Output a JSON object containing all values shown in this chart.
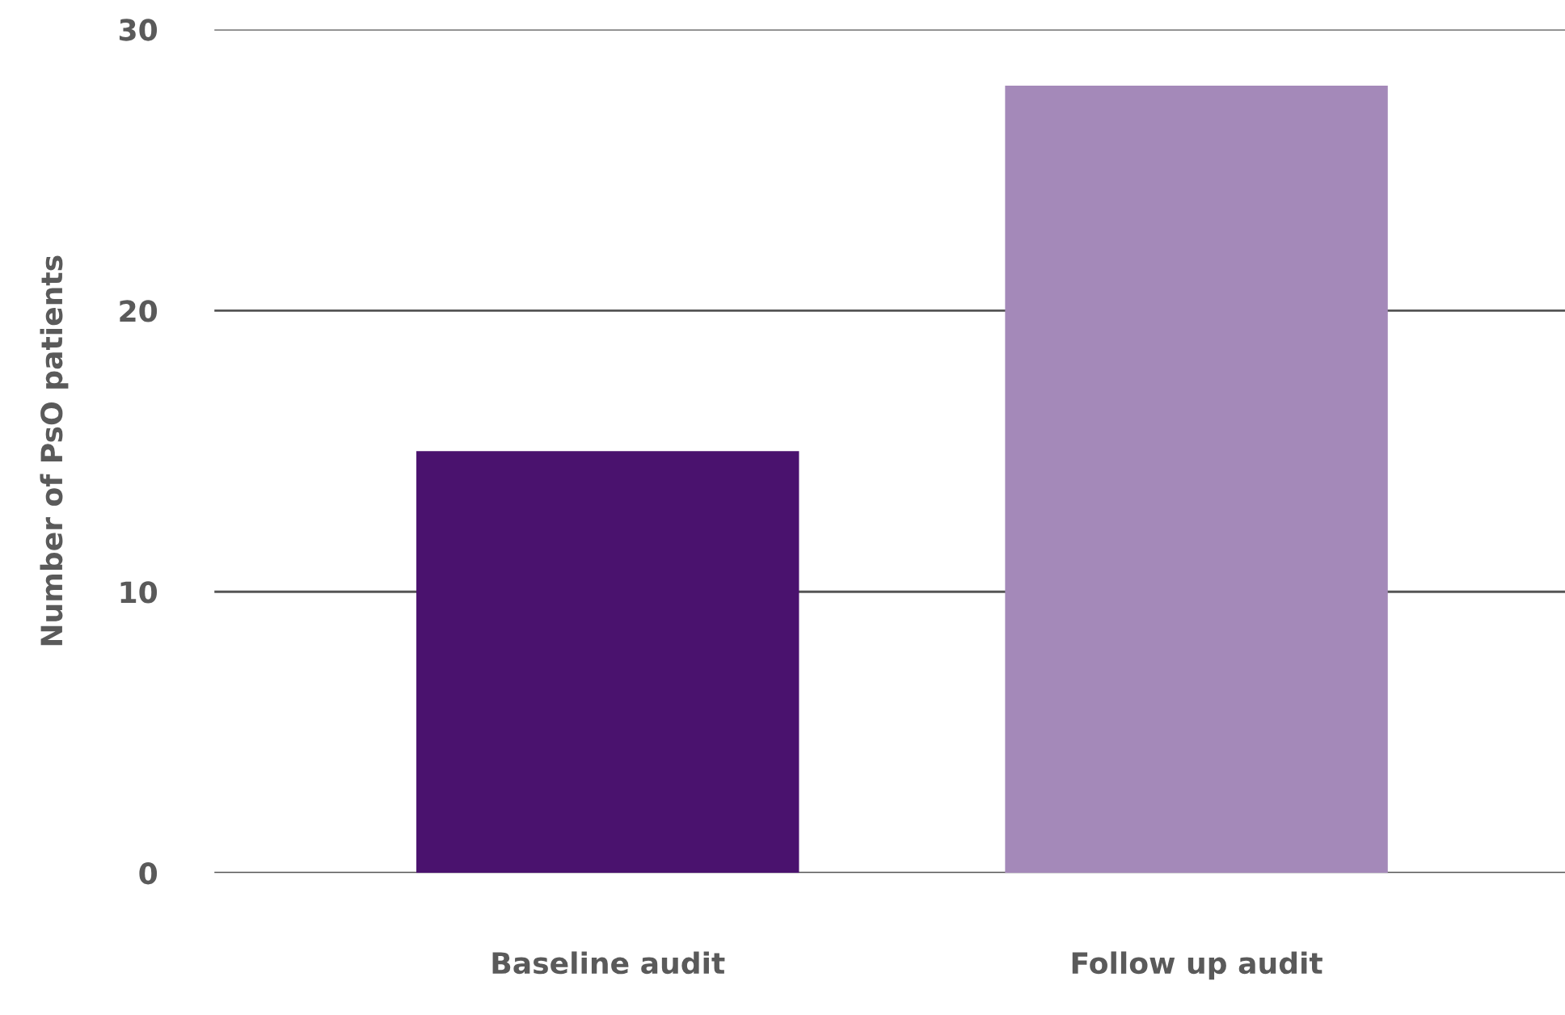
{
  "chart_data": {
    "type": "bar",
    "ylabel": "Number of PsO patients",
    "categories": [
      "Baseline audit",
      "Follow up audit"
    ],
    "values": [
      15,
      28
    ],
    "colors": [
      "#4a126e",
      "#a489b9"
    ],
    "ylim": [
      0,
      30
    ],
    "yticks": [
      0,
      10,
      20,
      30
    ],
    "grid": "y"
  }
}
